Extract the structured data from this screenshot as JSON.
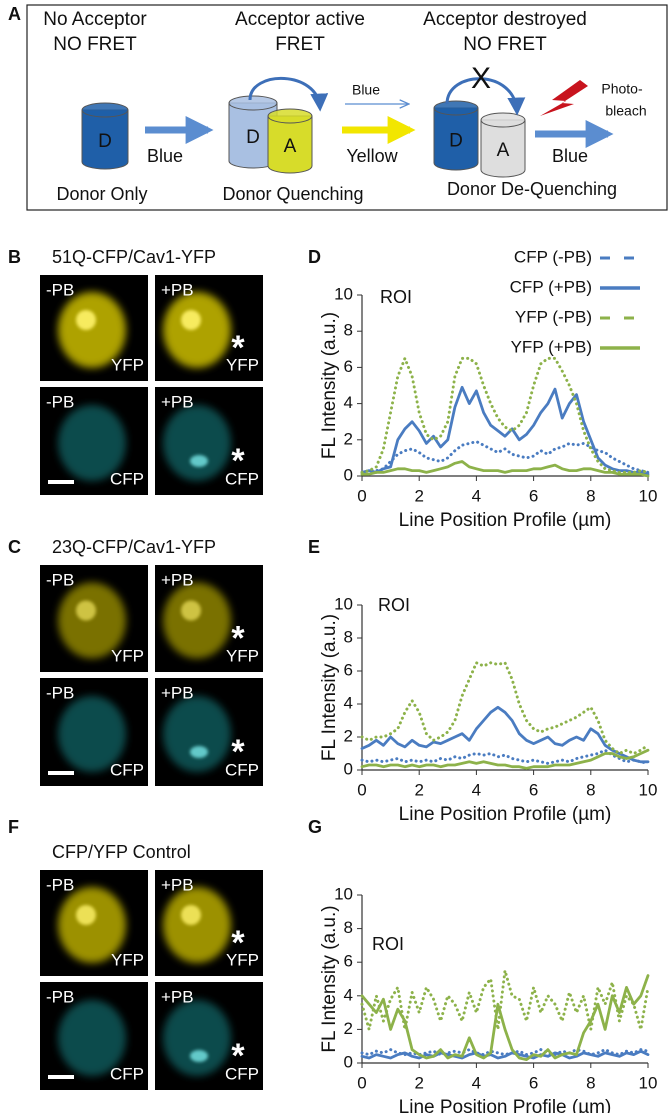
{
  "panel_a": {
    "label": "A",
    "columns": [
      {
        "heading": [
          "No Acceptor",
          "NO FRET"
        ],
        "cylinders": [
          "D"
        ],
        "arrow_label": "Blue",
        "caption": "Donor Only"
      },
      {
        "heading": [
          "Acceptor active",
          "FRET"
        ],
        "cylinders": [
          "D",
          "A"
        ],
        "arrow_label": "Yellow",
        "caption": "Donor Quenching"
      },
      {
        "heading": [
          "Acceptor destroyed",
          "NO FRET"
        ],
        "cylinders": [
          "D",
          "A"
        ],
        "arrow_label": "Blue",
        "caption": "Donor De-Quenching"
      }
    ],
    "excitation": "Blue",
    "blocked": "X",
    "photobleach": [
      "Photo-",
      "bleach"
    ]
  },
  "image_panels": [
    {
      "label": "B",
      "title": "51Q-CFP/Cav1-YFP",
      "images": [
        {
          "condition": "-PB",
          "channel": "YFP"
        },
        {
          "condition": "+PB",
          "channel": "YFP",
          "marker": "*"
        },
        {
          "condition": "-PB",
          "channel": "CFP"
        },
        {
          "condition": "+PB",
          "channel": "CFP",
          "marker": "*"
        }
      ]
    },
    {
      "label": "C",
      "title": "23Q-CFP/Cav1-YFP",
      "images": [
        {
          "condition": "-PB",
          "channel": "YFP"
        },
        {
          "condition": "+PB",
          "channel": "YFP",
          "marker": "*"
        },
        {
          "condition": "-PB",
          "channel": "CFP"
        },
        {
          "condition": "+PB",
          "channel": "CFP",
          "marker": "*"
        }
      ]
    },
    {
      "label": "F",
      "title": "CFP/YFP Control",
      "images": [
        {
          "condition": "-PB",
          "channel": "YFP"
        },
        {
          "condition": "+PB",
          "channel": "YFP",
          "marker": "*"
        },
        {
          "condition": "-PB",
          "channel": "CFP"
        },
        {
          "condition": "+PB",
          "channel": "CFP",
          "marker": "*"
        }
      ]
    }
  ],
  "chart_data": [
    {
      "type": "line",
      "panel_label": "D",
      "annotation": "ROI",
      "xlabel": "Line Position Profile (µm)",
      "ylabel": "FL Intensity (a.u.)",
      "xlim": [
        0,
        10
      ],
      "xticks": [
        0,
        2,
        4,
        6,
        8,
        10
      ],
      "ylim": [
        0,
        10
      ],
      "yticks": [
        0,
        2,
        4,
        6,
        8,
        10
      ],
      "legend": "upper right",
      "x": [
        0,
        0.25,
        0.5,
        0.75,
        1,
        1.25,
        1.5,
        1.75,
        2,
        2.25,
        2.5,
        2.75,
        3,
        3.25,
        3.5,
        3.75,
        4,
        4.25,
        4.5,
        4.75,
        5,
        5.25,
        5.5,
        5.75,
        6,
        6.25,
        6.5,
        6.75,
        7,
        7.25,
        7.5,
        7.75,
        8,
        8.25,
        8.5,
        8.75,
        9,
        9.25,
        9.5,
        9.75,
        10
      ],
      "series": [
        {
          "name": "CFP (-PB)",
          "color": "#4a7cc1",
          "style": "dotted",
          "values": [
            0.2,
            0.3,
            0.3,
            0.4,
            0.8,
            1.2,
            1.4,
            1.5,
            1.3,
            1.0,
            0.9,
            0.8,
            1.0,
            1.4,
            1.7,
            1.8,
            1.9,
            1.7,
            1.5,
            1.3,
            1.5,
            1.2,
            1.1,
            1.0,
            1.1,
            1.4,
            1.2,
            1.5,
            1.6,
            1.8,
            1.7,
            1.8,
            1.6,
            1.4,
            1.3,
            1.0,
            0.8,
            0.6,
            0.4,
            0.3,
            0.2
          ]
        },
        {
          "name": "CFP (+PB)",
          "color": "#4a7cc1",
          "style": "solid",
          "values": [
            0.2,
            0.3,
            0.2,
            0.4,
            0.5,
            2.0,
            2.6,
            3.0,
            2.5,
            1.8,
            2.2,
            1.6,
            2.0,
            3.8,
            4.9,
            4.0,
            4.7,
            3.5,
            2.8,
            2.5,
            2.2,
            2.6,
            2.0,
            2.3,
            2.8,
            3.5,
            4.0,
            4.8,
            3.2,
            4.0,
            4.5,
            3.0,
            2.0,
            1.0,
            0.6,
            0.4,
            0.3,
            0.3,
            0.2,
            0.2,
            0.1
          ]
        },
        {
          "name": "YFP (-PB)",
          "color": "#8db24a",
          "style": "dotted",
          "values": [
            0.2,
            0.3,
            0.5,
            1.5,
            3.5,
            5.5,
            6.5,
            5.5,
            3.5,
            2.3,
            2.0,
            2.2,
            3.0,
            5.5,
            6.5,
            6.5,
            6.2,
            5.0,
            4.0,
            3.2,
            2.7,
            2.5,
            2.8,
            3.5,
            5.0,
            6.2,
            6.5,
            6.5,
            5.8,
            5.0,
            4.0,
            2.5,
            1.5,
            0.8,
            0.4,
            0.3,
            0.2,
            0.2,
            0.2,
            0.3,
            0.2
          ]
        },
        {
          "name": "YFP (+PB)",
          "color": "#8db24a",
          "style": "solid",
          "values": [
            0.1,
            0.1,
            0.2,
            0.2,
            0.3,
            0.4,
            0.4,
            0.3,
            0.3,
            0.2,
            0.3,
            0.4,
            0.5,
            0.7,
            0.8,
            0.5,
            0.4,
            0.3,
            0.3,
            0.3,
            0.2,
            0.3,
            0.3,
            0.3,
            0.4,
            0.4,
            0.5,
            0.6,
            0.4,
            0.3,
            0.3,
            0.4,
            0.4,
            0.3,
            0.2,
            0.2,
            0.1,
            0.1,
            0.1,
            0.1,
            0.0
          ]
        }
      ]
    },
    {
      "type": "line",
      "panel_label": "E",
      "annotation": "ROI",
      "xlabel": "Line Position Profile (µm)",
      "ylabel": "FL Intensity (a.u.)",
      "xlim": [
        0,
        10
      ],
      "xticks": [
        0,
        2,
        4,
        6,
        8,
        10
      ],
      "ylim": [
        0,
        10
      ],
      "yticks": [
        0,
        2,
        4,
        6,
        8,
        10
      ],
      "x": [
        0,
        0.25,
        0.5,
        0.75,
        1,
        1.25,
        1.5,
        1.75,
        2,
        2.25,
        2.5,
        2.75,
        3,
        3.25,
        3.5,
        3.75,
        4,
        4.25,
        4.5,
        4.75,
        5,
        5.25,
        5.5,
        5.75,
        6,
        6.25,
        6.5,
        6.75,
        7,
        7.25,
        7.5,
        7.75,
        8,
        8.25,
        8.5,
        8.75,
        9,
        9.25,
        9.5,
        9.75,
        10
      ],
      "series": [
        {
          "color": "#4a7cc1",
          "style": "dotted",
          "values": [
            0.6,
            0.5,
            0.6,
            0.5,
            0.6,
            0.7,
            0.5,
            0.6,
            0.5,
            0.6,
            0.5,
            0.7,
            0.6,
            0.8,
            0.7,
            0.9,
            1.0,
            0.9,
            1.0,
            0.8,
            0.9,
            0.7,
            0.6,
            0.5,
            0.6,
            0.5,
            0.4,
            0.5,
            0.6,
            0.5,
            0.7,
            0.8,
            0.9,
            1.0,
            1.2,
            0.9,
            0.7,
            0.5,
            0.6,
            0.5,
            0.4
          ]
        },
        {
          "color": "#4a7cc1",
          "style": "solid",
          "values": [
            1.3,
            1.5,
            1.8,
            1.5,
            2.0,
            1.6,
            1.4,
            1.8,
            1.5,
            1.4,
            1.7,
            1.6,
            1.8,
            2.0,
            2.2,
            1.8,
            2.5,
            3.0,
            3.5,
            3.8,
            3.5,
            3.0,
            2.2,
            1.8,
            1.6,
            1.8,
            2.0,
            1.6,
            1.5,
            1.8,
            2.0,
            1.8,
            2.5,
            2.2,
            1.5,
            1.2,
            1.0,
            0.8,
            0.6,
            0.5,
            0.5
          ]
        },
        {
          "color": "#8db24a",
          "style": "dotted",
          "values": [
            2.0,
            1.8,
            2.0,
            2.0,
            2.2,
            2.5,
            3.5,
            4.2,
            3.5,
            2.2,
            1.8,
            2.0,
            2.3,
            3.0,
            4.5,
            5.5,
            6.5,
            6.3,
            6.5,
            6.4,
            6.5,
            5.5,
            4.0,
            3.0,
            2.5,
            2.3,
            2.5,
            2.6,
            2.8,
            3.0,
            3.2,
            3.5,
            3.8,
            3.0,
            1.8,
            1.3,
            1.0,
            1.2,
            1.0,
            1.2,
            1.5
          ]
        },
        {
          "color": "#8db24a",
          "style": "solid",
          "values": [
            0.2,
            0.3,
            0.3,
            0.2,
            0.3,
            0.3,
            0.2,
            0.3,
            0.2,
            0.3,
            0.3,
            0.2,
            0.3,
            0.3,
            0.4,
            0.5,
            0.4,
            0.5,
            0.4,
            0.3,
            0.3,
            0.2,
            0.2,
            0.1,
            0.2,
            0.2,
            0.2,
            0.3,
            0.3,
            0.3,
            0.4,
            0.5,
            0.6,
            0.8,
            1.0,
            1.0,
            0.8,
            0.7,
            0.8,
            1.0,
            1.2
          ]
        }
      ]
    },
    {
      "type": "line",
      "panel_label": "G",
      "annotation": "ROI",
      "xlabel": "Line Position Profile (µm)",
      "ylabel": "FL Intensity (a.u.)",
      "xlim": [
        0,
        10
      ],
      "xticks": [
        0,
        2,
        4,
        6,
        8,
        10
      ],
      "ylim": [
        0,
        10
      ],
      "yticks": [
        0,
        2,
        4,
        6,
        8,
        10
      ],
      "x": [
        0,
        0.25,
        0.5,
        0.75,
        1,
        1.25,
        1.5,
        1.75,
        2,
        2.25,
        2.5,
        2.75,
        3,
        3.25,
        3.5,
        3.75,
        4,
        4.25,
        4.5,
        4.75,
        5,
        5.25,
        5.5,
        5.75,
        6,
        6.25,
        6.5,
        6.75,
        7,
        7.25,
        7.5,
        7.75,
        8,
        8.25,
        8.5,
        8.75,
        9,
        9.25,
        9.5,
        9.75,
        10
      ],
      "series": [
        {
          "color": "#4a7cc1",
          "style": "dotted",
          "values": [
            0.6,
            0.5,
            0.7,
            0.6,
            0.8,
            0.6,
            0.5,
            0.6,
            0.5,
            0.6,
            0.7,
            0.5,
            0.6,
            0.7,
            0.6,
            0.8,
            0.6,
            0.5,
            0.7,
            0.6,
            0.5,
            0.6,
            0.7,
            0.5,
            0.6,
            0.8,
            0.6,
            0.5,
            0.7,
            0.6,
            0.8,
            0.7,
            0.5,
            0.6,
            0.8,
            0.6,
            0.5,
            0.7,
            0.6,
            0.8,
            0.7
          ]
        },
        {
          "color": "#4a7cc1",
          "style": "solid",
          "values": [
            0.4,
            0.3,
            0.5,
            0.4,
            0.3,
            0.5,
            0.6,
            0.4,
            0.3,
            0.5,
            0.4,
            0.6,
            0.5,
            0.4,
            0.3,
            0.5,
            0.6,
            0.4,
            0.5,
            0.3,
            0.4,
            0.6,
            0.5,
            0.4,
            0.3,
            0.5,
            0.4,
            0.6,
            0.5,
            0.3,
            0.4,
            0.6,
            0.5,
            0.4,
            0.6,
            0.5,
            0.4,
            0.6,
            0.5,
            0.7,
            0.5
          ]
        },
        {
          "color": "#8db24a",
          "style": "dotted",
          "values": [
            3.5,
            2.0,
            4.0,
            2.5,
            3.8,
            4.5,
            2.0,
            4.2,
            3.0,
            4.5,
            3.8,
            2.5,
            4.0,
            3.5,
            2.5,
            4.2,
            3.0,
            4.5,
            5.0,
            2.0,
            5.5,
            4.0,
            3.8,
            2.5,
            4.5,
            3.0,
            4.0,
            3.5,
            2.5,
            4.2,
            3.0,
            4.0,
            2.0,
            4.5,
            3.5,
            4.8,
            2.5,
            4.0,
            3.5,
            2.0,
            4.5
          ]
        },
        {
          "color": "#8db24a",
          "style": "solid",
          "values": [
            4.0,
            3.5,
            3.0,
            3.8,
            2.0,
            3.2,
            2.5,
            0.8,
            0.5,
            0.3,
            0.4,
            0.8,
            0.3,
            0.5,
            0.4,
            1.5,
            0.5,
            0.3,
            0.6,
            3.5,
            2.0,
            0.8,
            0.3,
            0.2,
            0.5,
            0.4,
            0.8,
            0.3,
            0.5,
            0.6,
            0.5,
            1.8,
            2.5,
            3.5,
            2.0,
            4.0,
            3.0,
            4.5,
            3.5,
            4.0,
            5.2
          ]
        }
      ]
    }
  ]
}
